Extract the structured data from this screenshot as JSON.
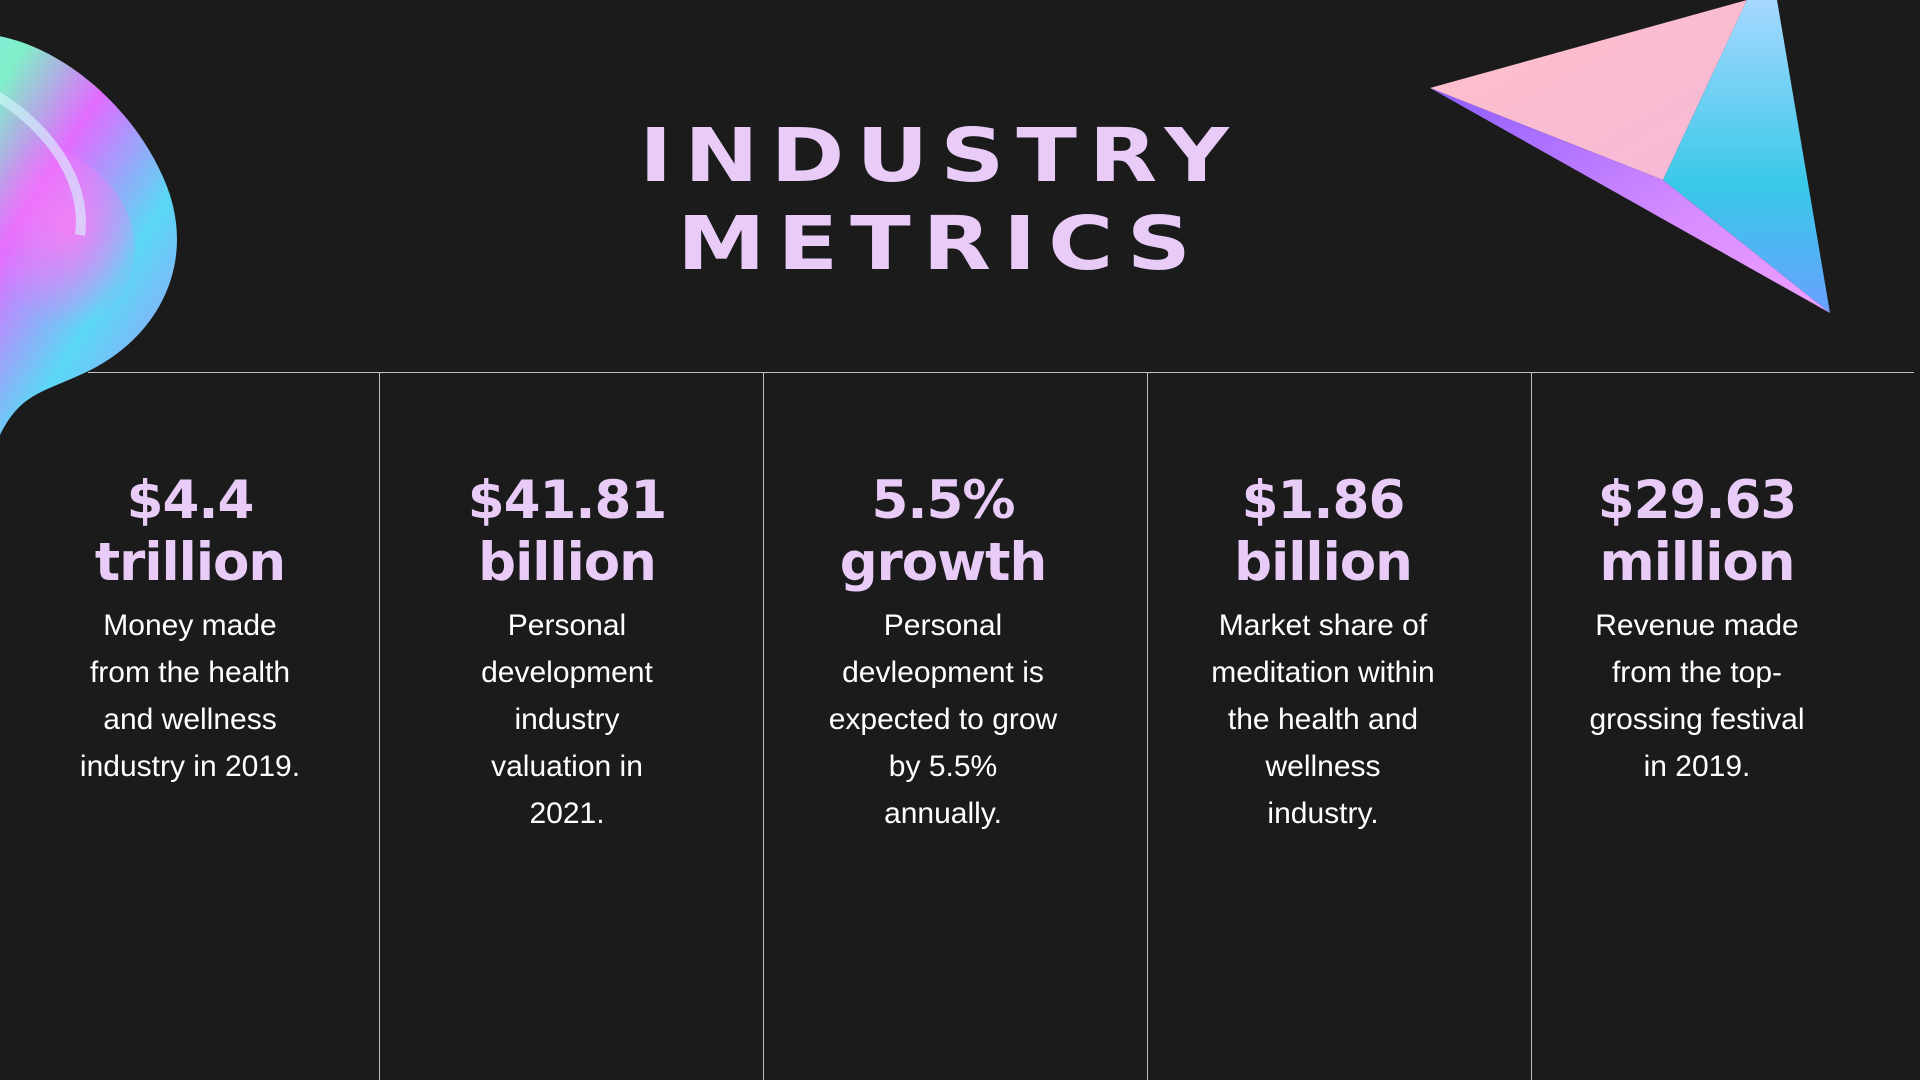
{
  "title": {
    "line1": "INDUSTRY",
    "line2": "METRICS"
  },
  "colors": {
    "background": "#1b1b1c",
    "accent": "#e8ccf7",
    "body_text": "#ffffff",
    "rule": "#bfbfbf"
  },
  "decorations": {
    "left": "iridescent-blob",
    "right": "iridescent-pyramid"
  },
  "metrics": [
    {
      "value_line1": "$4.4",
      "value_line2": "trillion",
      "description": "Money made from the health and wellness industry in 2019."
    },
    {
      "value_line1": "$41.81",
      "value_line2": "billion",
      "description": "Personal development industry valuation in 2021."
    },
    {
      "value_line1": "5.5%",
      "value_line2": "growth",
      "description": "Personal devleopment is expected to grow by 5.5% annually."
    },
    {
      "value_line1": "$1.86",
      "value_line2": "billion",
      "description": "Market share of meditation within the health and wellness industry."
    },
    {
      "value_line1": "$29.63",
      "value_line2": "million",
      "description": "Revenue made from the top-grossing festival in 2019."
    }
  ]
}
